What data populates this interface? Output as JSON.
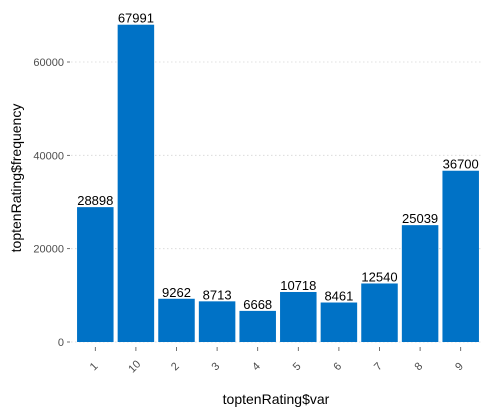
{
  "chart_data": {
    "type": "bar",
    "categories": [
      "1",
      "10",
      "2",
      "3",
      "4",
      "5",
      "6",
      "7",
      "8",
      "9"
    ],
    "values": [
      28898,
      67991,
      9262,
      8713,
      6668,
      10718,
      8461,
      12540,
      25039,
      36700
    ],
    "data_labels": [
      "28898",
      "67991",
      "9262",
      "8713",
      "6668",
      "10718",
      "8461",
      "12540",
      "25039",
      "36700"
    ],
    "y_ticks": [
      0,
      20000,
      40000,
      60000
    ],
    "y_tick_labels": [
      "0",
      "20000",
      "40000",
      "60000"
    ],
    "ylim": [
      0,
      71000
    ],
    "xlabel": "toptenRating$var",
    "ylabel": "toptenRating$frequency",
    "title": "",
    "grid": "horizontal-dotted",
    "legend": "none",
    "bar_color": "#0072C6"
  }
}
